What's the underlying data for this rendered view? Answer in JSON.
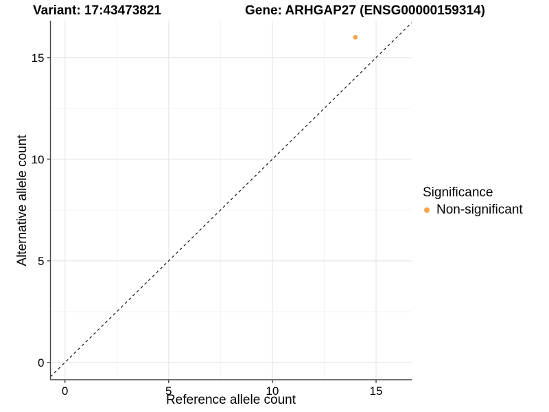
{
  "chart_data": {
    "type": "scatter",
    "titles": {
      "variant": "Variant: 17:43473821",
      "gene": "Gene: ARHGAP27 (ENSG00000159314)"
    },
    "xlabel": "Reference allele count",
    "ylabel": "Alternative allele count",
    "x_ticks": [
      0,
      5,
      10,
      15
    ],
    "y_ticks": [
      0,
      5,
      10,
      15
    ],
    "x_minor_gridlines": [
      2.5,
      7.5,
      12.5
    ],
    "y_minor_gridlines": [
      2.5,
      7.5,
      12.5
    ],
    "xlim": [
      -0.7,
      16.72
    ],
    "ylim": [
      -0.85,
      16.82
    ],
    "grid": true,
    "points": [
      {
        "x": 14,
        "y": 16,
        "series": "Non-significant"
      }
    ],
    "identity_line": {
      "style": "dashed",
      "slope": 1,
      "intercept": 0
    },
    "legend": {
      "title": "Significance",
      "position": "right",
      "items": [
        {
          "label": "Non-significant",
          "color": "#F8A64D"
        }
      ]
    },
    "colors": {
      "point": "#F8A64D",
      "axis": "#454545",
      "grid_major": "#E7E7E7",
      "grid_minor": "#F3F3F3",
      "dashed_line": "#111111",
      "tick_text": "#000000"
    }
  }
}
